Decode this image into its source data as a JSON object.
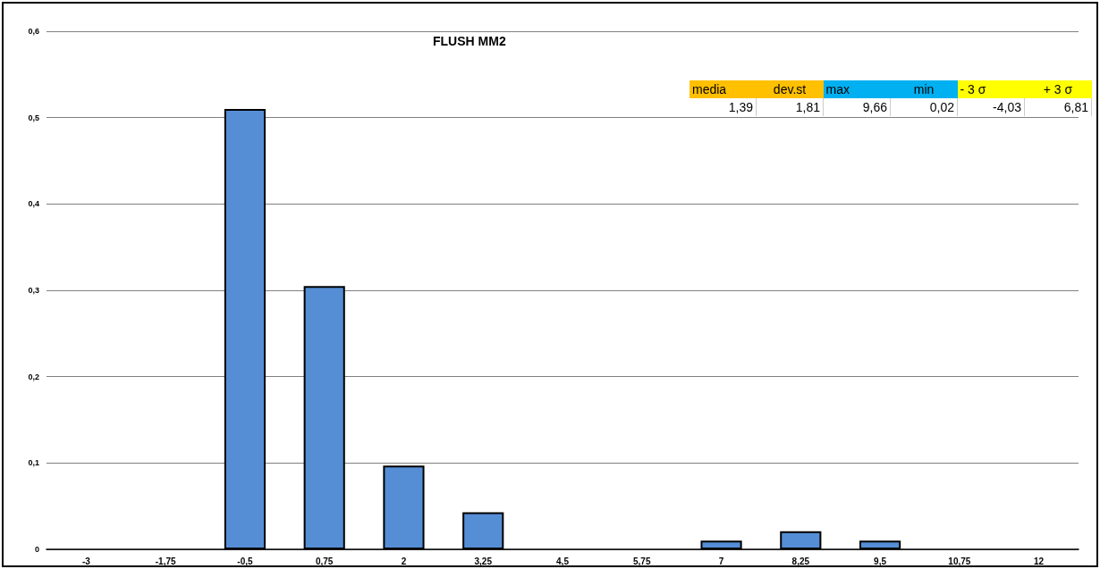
{
  "chart_data": {
    "type": "bar",
    "title": "FLUSH MM2",
    "categories": [
      "-3",
      "-1,75",
      "-0,5",
      "0,75",
      "2",
      "3,25",
      "4,5",
      "5,75",
      "7",
      "8,25",
      "9,5",
      "10,75",
      "12"
    ],
    "values": [
      0,
      0,
      0.51,
      0.305,
      0.097,
      0.043,
      0,
      0,
      0.01,
      0.021,
      0.01,
      0,
      0
    ],
    "color": "#558ed5",
    "ylim": [
      0,
      0.6
    ],
    "yticks": [
      0,
      {
        "value": 0.1,
        "label": "0,1"
      },
      {
        "value": 0.2,
        "label": "0,2"
      },
      {
        "value": 0.3,
        "label": "0,3"
      },
      {
        "value": 0.4,
        "label": "0,4"
      },
      {
        "value": 0.5,
        "label": "0,5"
      },
      {
        "value": 0.6,
        "label": "0,6"
      }
    ],
    "grid": "y",
    "annotations": [
      "media",
      "dev.st",
      "max",
      "min",
      "- 3 σ",
      "+ 3 σ",
      "1,39",
      "1,81",
      "9,66",
      "0,02",
      "-4,03",
      "6,81"
    ]
  }
}
